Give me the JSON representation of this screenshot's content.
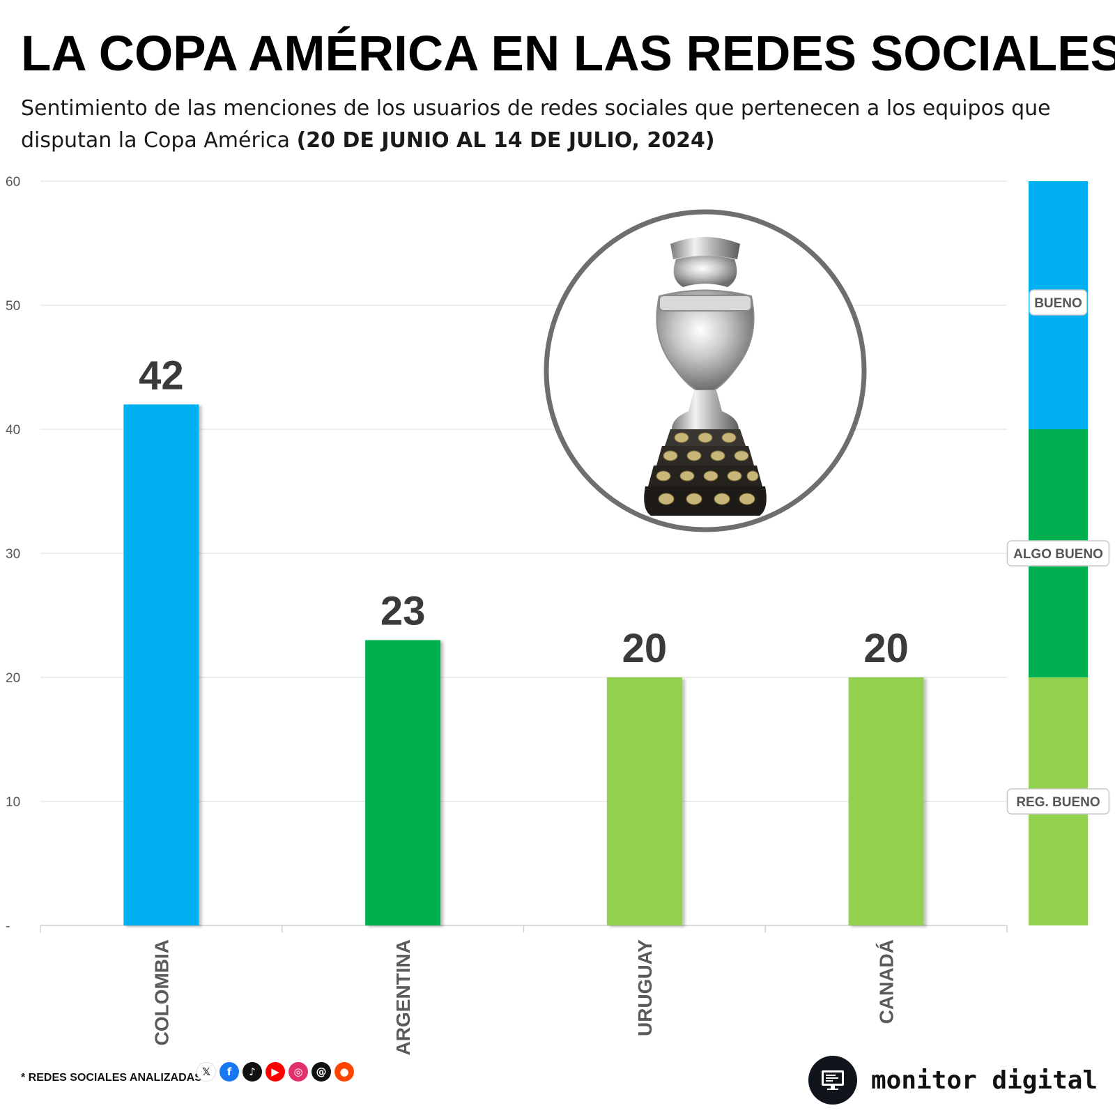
{
  "header": {
    "title": "LA COPA AMÉRICA EN LAS REDES SOCIALES",
    "subtitle_regular": "Sentimiento de las menciones de los usuarios de redes sociales que pertenecen a los equipos que disputan la Copa América ",
    "subtitle_bold": "(20 DE JUNIO AL 14 DE JULIO, 2024)"
  },
  "chart_data": {
    "type": "bar",
    "categories": [
      "COLOMBIA",
      "ARGENTINA",
      "URUGUAY",
      "CANADÁ"
    ],
    "values": [
      42,
      23,
      20,
      20
    ],
    "data_labels": [
      "42",
      "23",
      "20",
      "20"
    ],
    "bar_colors": [
      "#00b0f0",
      "#00b050",
      "#92d050",
      "#92d050"
    ],
    "yticks": [
      {
        "value": 0,
        "label": "-"
      },
      {
        "value": 10,
        "label": "10"
      },
      {
        "value": 20,
        "label": "20"
      },
      {
        "value": 30,
        "label": "30"
      },
      {
        "value": 40,
        "label": "40"
      },
      {
        "value": 50,
        "label": "50"
      },
      {
        "value": 60,
        "label": "60"
      }
    ],
    "ylim": [
      0,
      60
    ],
    "grid": true,
    "legend_scale": [
      {
        "label": "REG. BUENO",
        "from": 0,
        "to": 20,
        "color": "#92d050"
      },
      {
        "label": "ALGO BUENO",
        "from": 20,
        "to": 40,
        "color": "#00b050"
      },
      {
        "label": "BUENO",
        "from": 40,
        "to": 60,
        "color": "#00b0f0"
      }
    ],
    "legend_placement": "right"
  },
  "footer": {
    "networks_label": "* REDES SOCIALES ANALIZADAS",
    "networks": [
      {
        "icon": "x-icon",
        "glyph": "𝕏",
        "color": "#ffffff",
        "fg": "#111111"
      },
      {
        "icon": "facebook-icon",
        "glyph": "f",
        "color": "#1877f2",
        "fg": "#ffffff"
      },
      {
        "icon": "tiktok-icon",
        "glyph": "♪",
        "color": "#111111",
        "fg": "#ffffff"
      },
      {
        "icon": "youtube-icon",
        "glyph": "▶",
        "color": "#ff0000",
        "fg": "#ffffff"
      },
      {
        "icon": "instagram-icon",
        "glyph": "◎",
        "color": "#e1306c",
        "fg": "#ffffff"
      },
      {
        "icon": "threads-icon",
        "glyph": "@",
        "color": "#111111",
        "fg": "#ffffff"
      },
      {
        "icon": "reddit-icon",
        "glyph": "●",
        "color": "#ff4500",
        "fg": "#ffffff"
      }
    ],
    "brand_name": "monitor digital"
  }
}
